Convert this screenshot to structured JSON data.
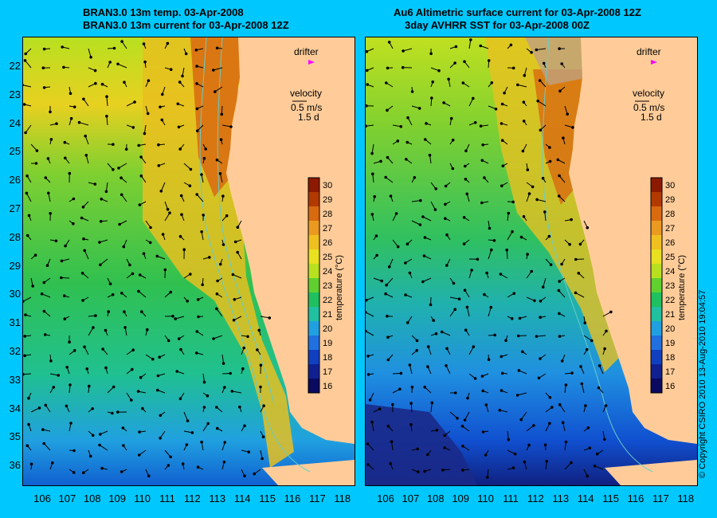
{
  "left_panel": {
    "title_line1": "BRAN3.0 13m temp. 03-Apr-2008",
    "title_line2": "BRAN3.0 13m current for 03-Apr-2008 12Z"
  },
  "right_panel": {
    "title_line1": "Au6 Altimetric surface current for 03-Apr-2008 12Z",
    "title_line2": "3day AVHRR SST for 03-Apr-2008 00Z"
  },
  "legend": {
    "drifter": "drifter",
    "velocity": "velocity",
    "speed": "0.5 m/s",
    "duration": "1.5 d",
    "drifter_color": "#ff00ff"
  },
  "colorbar": {
    "title": "temperature (°C)",
    "ticks": [
      "30",
      "29",
      "28",
      "27",
      "26",
      "25",
      "24",
      "23",
      "22",
      "21",
      "20",
      "19",
      "18",
      "17",
      "16"
    ],
    "colors": [
      "#8b1a00",
      "#b23a00",
      "#d86a10",
      "#ea9a20",
      "#f0c020",
      "#e8e020",
      "#b8e020",
      "#60d030",
      "#20c060",
      "#20c0a0",
      "#20a0e0",
      "#2070e0",
      "#1040c0",
      "#102090",
      "#0a0a60"
    ]
  },
  "y_ticks": [
    "22",
    "23",
    "24",
    "25",
    "26",
    "27",
    "28",
    "29",
    "30",
    "31",
    "32",
    "33",
    "34",
    "35",
    "36"
  ],
  "x_ticks": [
    "106",
    "107",
    "108",
    "109",
    "110",
    "111",
    "112",
    "113",
    "114",
    "115",
    "116",
    "117",
    "118"
  ],
  "copyright": "© Copyright CSIRO 2010   13-Aug-2010 19:04:57",
  "colors": {
    "background": "#00c8ff",
    "land": "#ffcc99",
    "contour": "#66cccc"
  }
}
